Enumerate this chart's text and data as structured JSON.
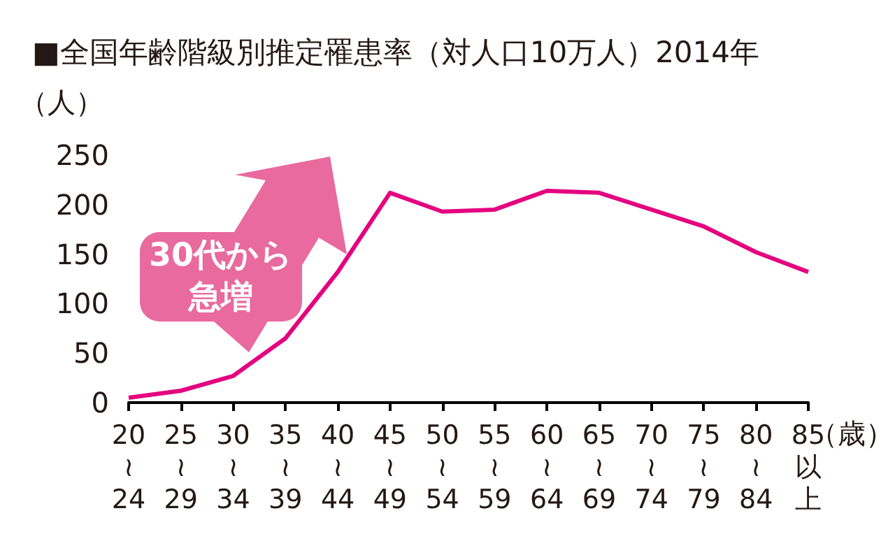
{
  "chart_data": {
    "type": "line",
    "title": "■全国年齢階級別推定罹患率（対人口10万人）2014年",
    "ylabel": "（人）",
    "xlabel": "（歳）",
    "categories": [
      "20\n≀\n24",
      "25\n≀\n29",
      "30\n≀\n34",
      "35\n≀\n39",
      "40\n≀\n44",
      "45\n≀\n49",
      "50\n≀\n54",
      "55\n≀\n59",
      "60\n≀\n64",
      "65\n≀\n69",
      "70\n≀\n74",
      "75\n≀\n79",
      "80\n≀\n84",
      "85以上"
    ],
    "series": [
      {
        "color": "#e4007f",
        "values": [
          5,
          12,
          27,
          65,
          132,
          212,
          193,
          195,
          214,
          212,
          195,
          178,
          152,
          132
        ]
      }
    ],
    "ylim": [
      0,
      250
    ],
    "yticks": [
      0,
      50,
      100,
      150,
      200,
      250
    ],
    "grid": false,
    "marker": "none",
    "line_style": "solid",
    "annotations": [
      "30代から急増"
    ]
  }
}
